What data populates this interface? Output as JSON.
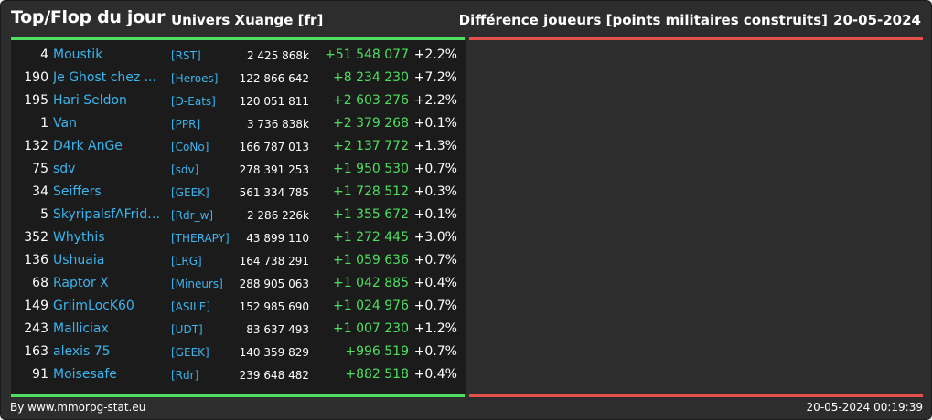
{
  "header": {
    "title": "Top/Flop du jour",
    "universe": "Univers Xuange [fr]",
    "right_title": "Différence joueurs [points militaires construits]",
    "date": "20-05-2024"
  },
  "colors": {
    "gain": "#4ede60",
    "loss": "#e2524a",
    "link": "#3cb4ee"
  },
  "rows": [
    {
      "rank": "4",
      "name": "Moustik",
      "alliance": "[RST]",
      "points": "2 425 868k",
      "diff": "+51 548 077",
      "pct": "+2.2%"
    },
    {
      "rank": "190",
      "name": "Je Ghost chez ...",
      "alliance": "[Heroes]",
      "points": "122 866 642",
      "diff": "+8 234 230",
      "pct": "+7.2%"
    },
    {
      "rank": "195",
      "name": "Hari Seldon",
      "alliance": "[D-Eats]",
      "points": "120 051 811",
      "diff": "+2 603 276",
      "pct": "+2.2%"
    },
    {
      "rank": "1",
      "name": "Van",
      "alliance": "[PPR]",
      "points": "3 736 838k",
      "diff": "+2 379 268",
      "pct": "+0.1%"
    },
    {
      "rank": "132",
      "name": "D4rk AnGe",
      "alliance": "[CoNo]",
      "points": "166 787 013",
      "diff": "+2 137 772",
      "pct": "+1.3%"
    },
    {
      "rank": "75",
      "name": "sdv",
      "alliance": "[sdv]",
      "points": "278 391 253",
      "diff": "+1 950 530",
      "pct": "+0.7%"
    },
    {
      "rank": "34",
      "name": "Seiffers",
      "alliance": "[GEEK]",
      "points": "561 334 785",
      "diff": "+1 728 512",
      "pct": "+0.3%"
    },
    {
      "rank": "5",
      "name": "SkyripalsfAFridg...",
      "alliance": "[Rdr_w]",
      "points": "2 286 226k",
      "diff": "+1 355 672",
      "pct": "+0.1%"
    },
    {
      "rank": "352",
      "name": "Whythis",
      "alliance": "[THERAPY]",
      "points": "43 899 110",
      "diff": "+1 272 445",
      "pct": "+3.0%"
    },
    {
      "rank": "136",
      "name": "Ushuaia",
      "alliance": "[LRG]",
      "points": "164 738 291",
      "diff": "+1 059 636",
      "pct": "+0.7%"
    },
    {
      "rank": "68",
      "name": "Raptor X",
      "alliance": "[Mineurs]",
      "points": "288 905 063",
      "diff": "+1 042 885",
      "pct": "+0.4%"
    },
    {
      "rank": "149",
      "name": "GriimLocK60",
      "alliance": "[ASILE]",
      "points": "152 985 690",
      "diff": "+1 024 976",
      "pct": "+0.7%"
    },
    {
      "rank": "243",
      "name": "Malliciax",
      "alliance": "[UDT]",
      "points": "83 637 493",
      "diff": "+1 007 230",
      "pct": "+1.2%"
    },
    {
      "rank": "163",
      "name": "alexis 75",
      "alliance": "[GEEK]",
      "points": "140 359 829",
      "diff": "+996 519",
      "pct": "+0.7%"
    },
    {
      "rank": "91",
      "name": "Moisesafe",
      "alliance": "[Rdr]",
      "points": "239 648 482",
      "diff": "+882 518",
      "pct": "+0.4%"
    }
  ],
  "footer": {
    "credit": "By www.mmorpg-stat.eu",
    "timestamp": "20-05-2024 00:19:39"
  }
}
